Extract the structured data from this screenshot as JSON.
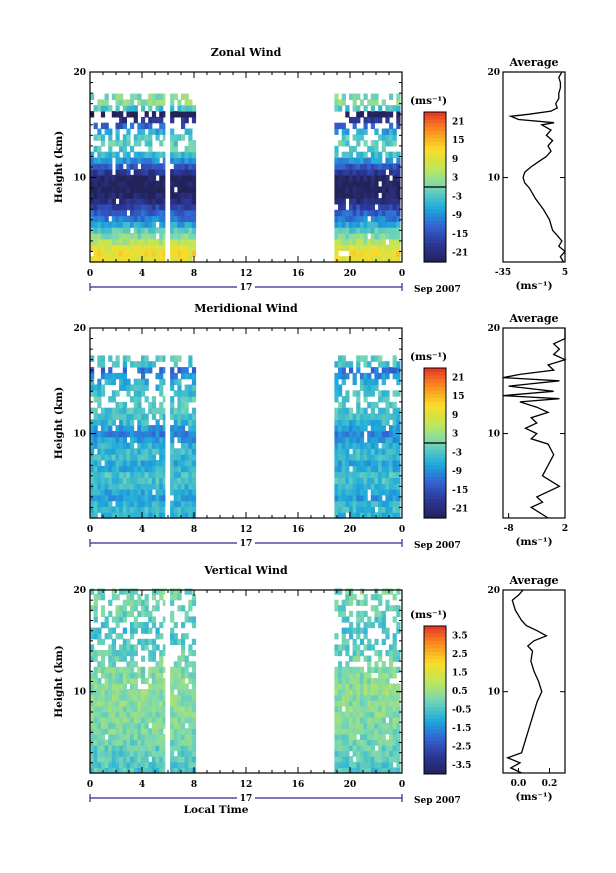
{
  "chart_data": [
    {
      "id": "zonal",
      "type": "heatmap",
      "title": "Zonal Wind",
      "ylabel": "Height (km)",
      "xlabel": "",
      "x_ticks": [
        "0",
        "4",
        "8",
        "12",
        "16",
        "20",
        "0"
      ],
      "y_ticks": [
        "10",
        "20"
      ],
      "xlim": [
        0,
        24
      ],
      "ylim": [
        2,
        20
      ],
      "date_label": "17",
      "month_label": "Sep 2007",
      "colorbar": {
        "unit": "(ms⁻¹)",
        "ticks": [
          "21",
          "15",
          "9",
          "3",
          "-3",
          "-9",
          "-15",
          "-21"
        ],
        "range": [
          -24,
          24
        ],
        "zero_line": 0
      },
      "data_blocks": [
        {
          "t0": 0,
          "t1": 8,
          "gap": 5.8
        },
        {
          "t0": 18.8,
          "t1": 23.8
        }
      ],
      "profile_z": [
        2,
        3,
        4,
        5,
        6,
        7,
        8,
        9,
        10,
        11,
        12,
        13,
        14,
        15,
        16,
        16.5,
        17,
        18,
        19,
        20
      ],
      "profile_bands_u": [
        8,
        12,
        4,
        -2,
        -10,
        -15,
        -22,
        -24,
        -23,
        -15,
        -5,
        -1,
        -3,
        -14,
        -26,
        -4,
        2,
        0,
        3,
        5
      ],
      "average": {
        "title": "Average",
        "unit": "(ms⁻¹)",
        "x_ticks": [
          "-35",
          "5"
        ],
        "xlim": [
          -35,
          5
        ],
        "y_ticks": [
          "10",
          "20"
        ],
        "z": [
          2,
          2.5,
          3,
          3.5,
          4,
          4.5,
          5,
          6,
          7,
          8,
          9,
          9.5,
          10,
          10.5,
          11,
          11.5,
          12,
          12.5,
          13,
          13.5,
          14,
          14.5,
          15,
          15.2,
          15.5,
          15.8,
          16,
          16.3,
          16.6,
          17,
          17.5,
          18,
          18.5,
          19,
          19.5,
          20
        ],
        "u": [
          4,
          2,
          5,
          1,
          3,
          0,
          -3,
          -5,
          -9,
          -14,
          -18,
          -21,
          -22,
          -21,
          -17,
          -12,
          -7,
          -4,
          -6,
          -3,
          -7,
          -4,
          -10,
          -2,
          -25,
          -30,
          -18,
          -4,
          0,
          -1,
          1,
          1,
          2,
          2,
          1,
          3
        ]
      }
    },
    {
      "id": "meridional",
      "type": "heatmap",
      "title": "Meridional Wind",
      "ylabel": "Height (km)",
      "xlabel": "",
      "x_ticks": [
        "0",
        "4",
        "8",
        "12",
        "16",
        "20",
        "0"
      ],
      "y_ticks": [
        "10",
        "20"
      ],
      "xlim": [
        0,
        24
      ],
      "ylim": [
        2,
        20
      ],
      "date_label": "17",
      "month_label": "Sep 2007",
      "colorbar": {
        "unit": "(ms⁻¹)",
        "ticks": [
          "21",
          "15",
          "9",
          "3",
          "-3",
          "-9",
          "-15",
          "-21"
        ],
        "range": [
          -24,
          24
        ],
        "zero_line": 0
      },
      "data_blocks": [
        {
          "t0": 0,
          "t1": 8,
          "gap": 5.8
        },
        {
          "t0": 18.8,
          "t1": 23.8
        }
      ],
      "profile_z": [
        2,
        3,
        4,
        5,
        6,
        7,
        8,
        9,
        10,
        11,
        12,
        13,
        14,
        15,
        16,
        16.5,
        17,
        18,
        19,
        20
      ],
      "profile_bands_u": [
        -6,
        -4,
        -8,
        -5,
        -3,
        -7,
        -4,
        -6,
        -10,
        -5,
        -3,
        -2,
        -4,
        -6,
        -12,
        -4,
        -2,
        -1,
        0,
        0
      ],
      "average": {
        "title": "Average",
        "unit": "(ms⁻¹)",
        "x_ticks": [
          "-8",
          "2"
        ],
        "xlim": [
          -9,
          2
        ],
        "y_ticks": [
          "10",
          "20"
        ],
        "z": [
          2,
          3,
          3.5,
          4,
          5,
          6,
          7,
          8,
          9,
          9.5,
          10,
          10.5,
          11,
          11.5,
          12,
          12.5,
          13,
          13.3,
          13.6,
          14,
          14.5,
          15,
          15.3,
          15.6,
          16,
          16.5,
          17,
          17.5,
          18,
          18.5,
          19,
          20
        ],
        "u": [
          -1,
          -4,
          -2,
          -3,
          1,
          -2,
          -1,
          0,
          -1,
          -4,
          -3,
          -5,
          -3,
          -4,
          -1,
          -3,
          -6,
          1,
          -9,
          0,
          -8,
          1,
          -9,
          -6,
          0,
          -1,
          2,
          0,
          1,
          0,
          2,
          2
        ]
      }
    },
    {
      "id": "vertical",
      "type": "heatmap",
      "title": "Vertical Wind",
      "ylabel": "Height (km)",
      "xlabel": "Local Time",
      "x_ticks": [
        "0",
        "4",
        "8",
        "12",
        "16",
        "20",
        "0"
      ],
      "y_ticks": [
        "10",
        "20"
      ],
      "xlim": [
        0,
        24
      ],
      "ylim": [
        2,
        20
      ],
      "date_label": "17",
      "month_label": "Sep 2007",
      "colorbar": {
        "unit": "(ms⁻¹)",
        "ticks": [
          "3.5",
          "2.5",
          "1.5",
          "0.5",
          "-0.5",
          "-1.5",
          "-2.5",
          "-3.5"
        ],
        "range": [
          -4,
          4
        ],
        "zero_line": null
      },
      "data_blocks": [
        {
          "t0": 0,
          "t1": 8,
          "gap": 5.8
        },
        {
          "t0": 18.8,
          "t1": 23.8
        }
      ],
      "profile_z": [
        2,
        4,
        6,
        8,
        10,
        12,
        14,
        16,
        18,
        20
      ],
      "profile_bands_u": [
        -0.5,
        -0.3,
        0.1,
        0.2,
        0.3,
        0.1,
        -0.2,
        -0.6,
        -0.1,
        0
      ],
      "average": {
        "title": "Average",
        "unit": "(ms⁻¹)",
        "x_ticks": [
          "0.0",
          "0.2"
        ],
        "xlim": [
          -0.1,
          0.3
        ],
        "y_ticks": [
          "10",
          "20"
        ],
        "z": [
          2,
          2.5,
          3,
          3.5,
          4,
          5,
          6,
          7,
          8,
          9,
          10,
          11,
          12,
          13,
          14,
          14.5,
          15,
          15.5,
          16,
          16.5,
          17,
          18,
          19,
          19.5,
          20
        ],
        "u": [
          0.02,
          -0.05,
          0.01,
          -0.07,
          0.02,
          0.04,
          0.06,
          0.08,
          0.1,
          0.12,
          0.15,
          0.13,
          0.1,
          0.08,
          0.09,
          0.06,
          0.1,
          0.18,
          0.12,
          0.05,
          0.02,
          -0.02,
          -0.04,
          0.0,
          0.03
        ]
      }
    }
  ]
}
